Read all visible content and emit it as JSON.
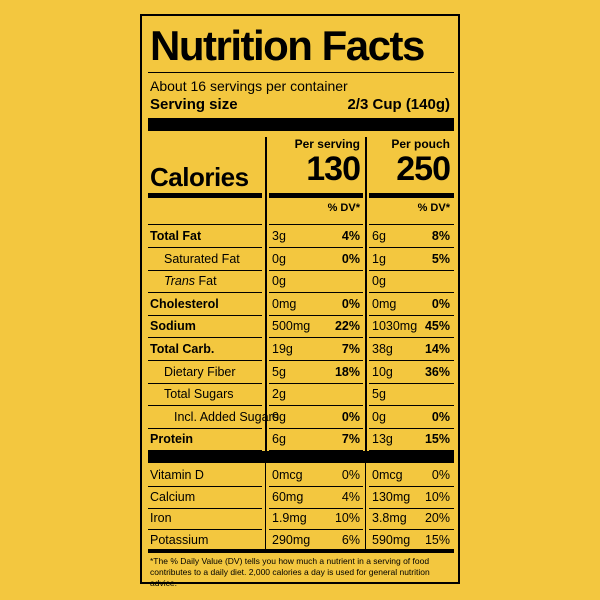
{
  "title": "Nutrition Facts",
  "servings_per_container": "About 16 servings per container",
  "serving_size_label": "Serving size",
  "serving_size_value": "2/3 Cup (140g)",
  "calories_label": "Calories",
  "per_serving_label": "Per serving",
  "per_pouch_label": "Per pouch",
  "calories_per_serving": "130",
  "calories_per_pouch": "250",
  "dv_header": "% DV*",
  "nutrients": [
    {
      "name": "Total Fat",
      "bold": true,
      "indent": 0,
      "serving_amount": "3g",
      "serving_dv": "4%",
      "pouch_amount": "6g",
      "pouch_dv": "8%"
    },
    {
      "name": "Saturated Fat",
      "bold": false,
      "indent": 1,
      "serving_amount": "0g",
      "serving_dv": "0%",
      "pouch_amount": "1g",
      "pouch_dv": "5%"
    },
    {
      "name": "Trans Fat",
      "bold": false,
      "indent": 1,
      "italic_prefix": "Trans",
      "serving_amount": "0g",
      "serving_dv": "",
      "pouch_amount": "0g",
      "pouch_dv": ""
    },
    {
      "name": "Cholesterol",
      "bold": true,
      "indent": 0,
      "serving_amount": "0mg",
      "serving_dv": "0%",
      "pouch_amount": "0mg",
      "pouch_dv": "0%"
    },
    {
      "name": "Sodium",
      "bold": true,
      "indent": 0,
      "serving_amount": "500mg",
      "serving_dv": "22%",
      "pouch_amount": "1030mg",
      "pouch_dv": "45%"
    },
    {
      "name": "Total Carb.",
      "bold": true,
      "indent": 0,
      "serving_amount": "19g",
      "serving_dv": "7%",
      "pouch_amount": "38g",
      "pouch_dv": "14%"
    },
    {
      "name": "Dietary Fiber",
      "bold": false,
      "indent": 1,
      "serving_amount": "5g",
      "serving_dv": "18%",
      "pouch_amount": "10g",
      "pouch_dv": "36%"
    },
    {
      "name": "Total Sugars",
      "bold": false,
      "indent": 1,
      "serving_amount": "2g",
      "serving_dv": "",
      "pouch_amount": "5g",
      "pouch_dv": ""
    },
    {
      "name": "Incl. Added Sugars",
      "bold": false,
      "indent": 2,
      "serving_amount": "0g",
      "serving_dv": "0%",
      "pouch_amount": "0g",
      "pouch_dv": "0%"
    },
    {
      "name": "Protein",
      "bold": true,
      "indent": 0,
      "serving_amount": "6g",
      "serving_dv": "7%",
      "pouch_amount": "13g",
      "pouch_dv": "15%"
    }
  ],
  "vitamins": [
    {
      "name": "Vitamin D",
      "serving_amount": "0mcg",
      "serving_dv": "0%",
      "pouch_amount": "0mcg",
      "pouch_dv": "0%"
    },
    {
      "name": "Calcium",
      "serving_amount": "60mg",
      "serving_dv": "4%",
      "pouch_amount": "130mg",
      "pouch_dv": "10%"
    },
    {
      "name": "Iron",
      "serving_amount": "1.9mg",
      "serving_dv": "10%",
      "pouch_amount": "3.8mg",
      "pouch_dv": "20%"
    },
    {
      "name": "Potassium",
      "serving_amount": "290mg",
      "serving_dv": "6%",
      "pouch_amount": "590mg",
      "pouch_dv": "15%"
    }
  ],
  "footnote": "*The % Daily Value (DV) tells you how much a nutrient in a serving of food contributes to a daily diet. 2,000 calories a day is used for general nutrition advice."
}
